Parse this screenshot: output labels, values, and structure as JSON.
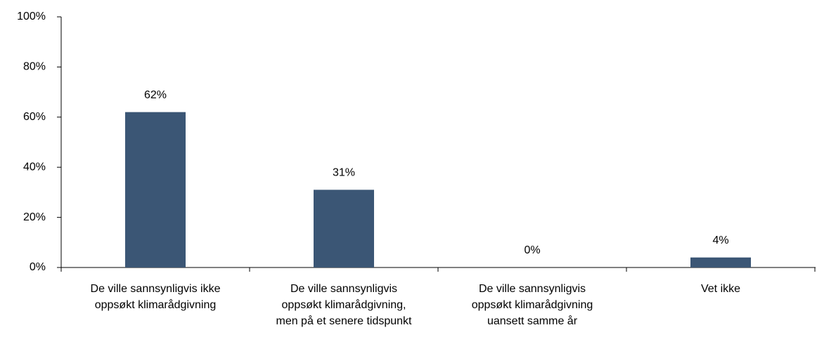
{
  "chart_data": {
    "type": "bar",
    "categories": [
      "De ville sannsynligvis ikke\noppsøkt klimarådgivning",
      "De ville sannsynligvis\noppsøkt klimarådgivning,\nmen på et senere tidspunkt",
      "De ville sannsynligvis\noppsøkt klimarådgivning\nuansett samme år",
      "Vet ikke"
    ],
    "values": [
      62,
      31,
      0,
      4
    ],
    "value_labels": [
      "62%",
      "31%",
      "0%",
      "4%"
    ],
    "color": "#3b5675",
    "ylim": [
      0,
      100
    ],
    "yticks": [
      {
        "value": 0,
        "label": "0%"
      },
      {
        "value": 20,
        "label": "20%"
      },
      {
        "value": 40,
        "label": "40%"
      },
      {
        "value": 60,
        "label": "60%"
      },
      {
        "value": 80,
        "label": "80%"
      },
      {
        "value": 100,
        "label": "100%"
      }
    ],
    "grid": false
  }
}
